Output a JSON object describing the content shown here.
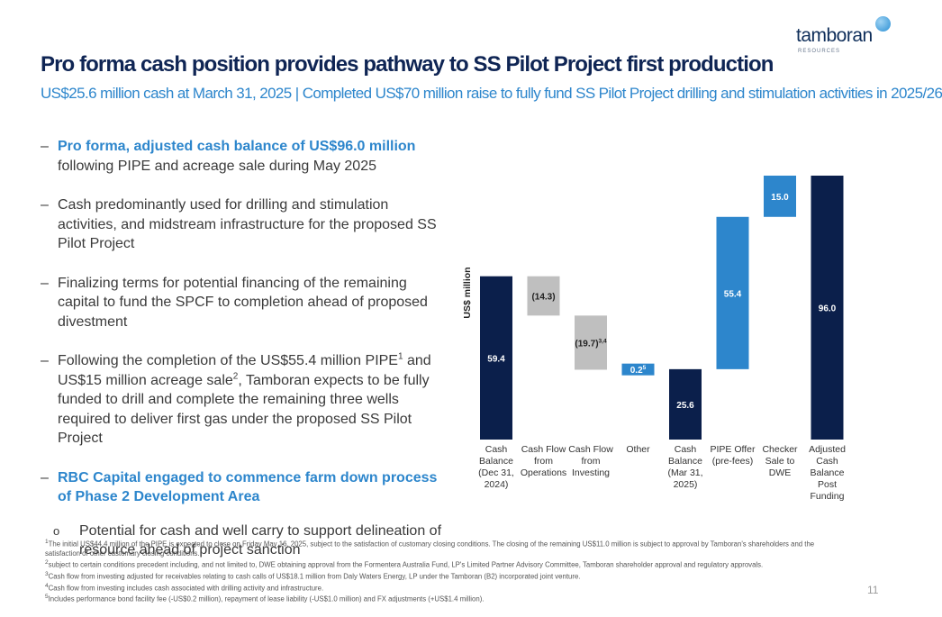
{
  "header": {
    "title": "Pro forma cash position provides pathway to SS Pilot Project first production",
    "subtitle": "US$25.6 million cash at March 31, 2025 | Completed US$70 million raise to fully fund SS Pilot Project drilling and stimulation activities in 2025/26",
    "logo_text": "tamboran",
    "logo_subtext": "RESOURCES"
  },
  "bullets": {
    "b1": {
      "highlight": "Pro forma, adjusted cash balance of US$96.0 million",
      "rest": " following PIPE and acreage sale during May 2025"
    },
    "b2": {
      "text": "Cash predominantly used for drilling and stimulation activities, and midstream infrastructure for the proposed SS Pilot Project"
    },
    "b3": {
      "text": "Finalizing terms for potential financing of the remaining capital to fund the SPCF to completion ahead of proposed divestment"
    },
    "b4": {
      "part1": "Following the completion of the US$55.4 million PIPE",
      "sup1": "1",
      "part2": " and US$15 million acreage sale",
      "sup2": "2",
      "part3": ", Tamboran expects to be fully funded to drill and complete the remaining three wells required to deliver first gas under the proposed SS Pilot Project"
    },
    "b5": {
      "highlight": "RBC Capital engaged to commence farm down process of Phase 2 Development Area"
    },
    "sub1": {
      "text": "Potential for cash and well carry to support delineation of resource ahead of project sanction"
    },
    "dash": "–",
    "circle": "o"
  },
  "chart_data": {
    "type": "waterfall",
    "ylabel": "US$ million",
    "categories": [
      "Cash Balance (Dec 31, 2024)",
      "Cash Flow from Operations",
      "Cash Flow from Investing",
      "Other",
      "Cash Balance (Mar 31, 2025)",
      "PIPE Offer (pre-fees)",
      "Checker Sale to DWE",
      "Adjusted Cash Balance Post Funding"
    ],
    "category_lines": [
      [
        "Cash",
        "Balance",
        "(Dec 31,",
        "2024)"
      ],
      [
        "Cash Flow",
        "from",
        "Operations"
      ],
      [
        "Cash Flow",
        "from",
        "Investing"
      ],
      [
        "Other"
      ],
      [
        "Cash",
        "Balance",
        "(Mar 31,",
        "2025)"
      ],
      [
        "PIPE Offer",
        "(pre-fees)"
      ],
      [
        "Checker",
        "Sale to",
        "DWE"
      ],
      [
        "Adjusted",
        "Cash",
        "Balance",
        "Post",
        "Funding"
      ]
    ],
    "values": [
      59.4,
      -14.3,
      -19.7,
      0.2,
      25.6,
      55.4,
      15.0,
      96.0
    ],
    "kinds": [
      "total",
      "decrease",
      "decrease",
      "increase",
      "total",
      "increase",
      "increase",
      "total"
    ],
    "labels": [
      "59.4",
      "(14.3)",
      "(19.7)",
      "0.2",
      "25.6",
      "55.4",
      "15.0",
      "96.0"
    ],
    "label_sups": [
      "",
      "",
      "3,4",
      "5",
      "",
      "",
      "",
      ""
    ],
    "colors": {
      "total": "#0b1f4b",
      "decrease": "#bfbfbf",
      "increase": "#2d86cc"
    },
    "ylim": [
      0,
      96.0
    ]
  },
  "footnotes": [
    {
      "sup": "1",
      "text": "The initial US$44.4 million of the PIPE is expected to close on Friday May 16, 2025, subject to the satisfaction of customary closing conditions. The closing of the remaining US$11.0 million is subject to approval by Tamboran's shareholders and the satisfaction of other customary closing conditions."
    },
    {
      "sup": "2",
      "text": "subject to certain conditions precedent including, and not limited to, DWE obtaining approval from the Formentera Australia Fund, LP's Limited Partner Advisory Committee, Tamboran shareholder approval and regulatory approvals."
    },
    {
      "sup": "3",
      "text": "Cash flow from investing adjusted for receivables relating to cash calls of US$18.1 million from Daly Waters Energy, LP under the Tamboran (B2) incorporated joint venture."
    },
    {
      "sup": "4",
      "text": "Cash flow from investing includes cash associated with drilling activity and infrastructure."
    },
    {
      "sup": "5",
      "text": "Includes performance bond facility fee (-US$0.2 million), repayment of lease liability (-US$1.0 million) and FX adjustments (+US$1.4 million)."
    }
  ],
  "page_number": "11"
}
